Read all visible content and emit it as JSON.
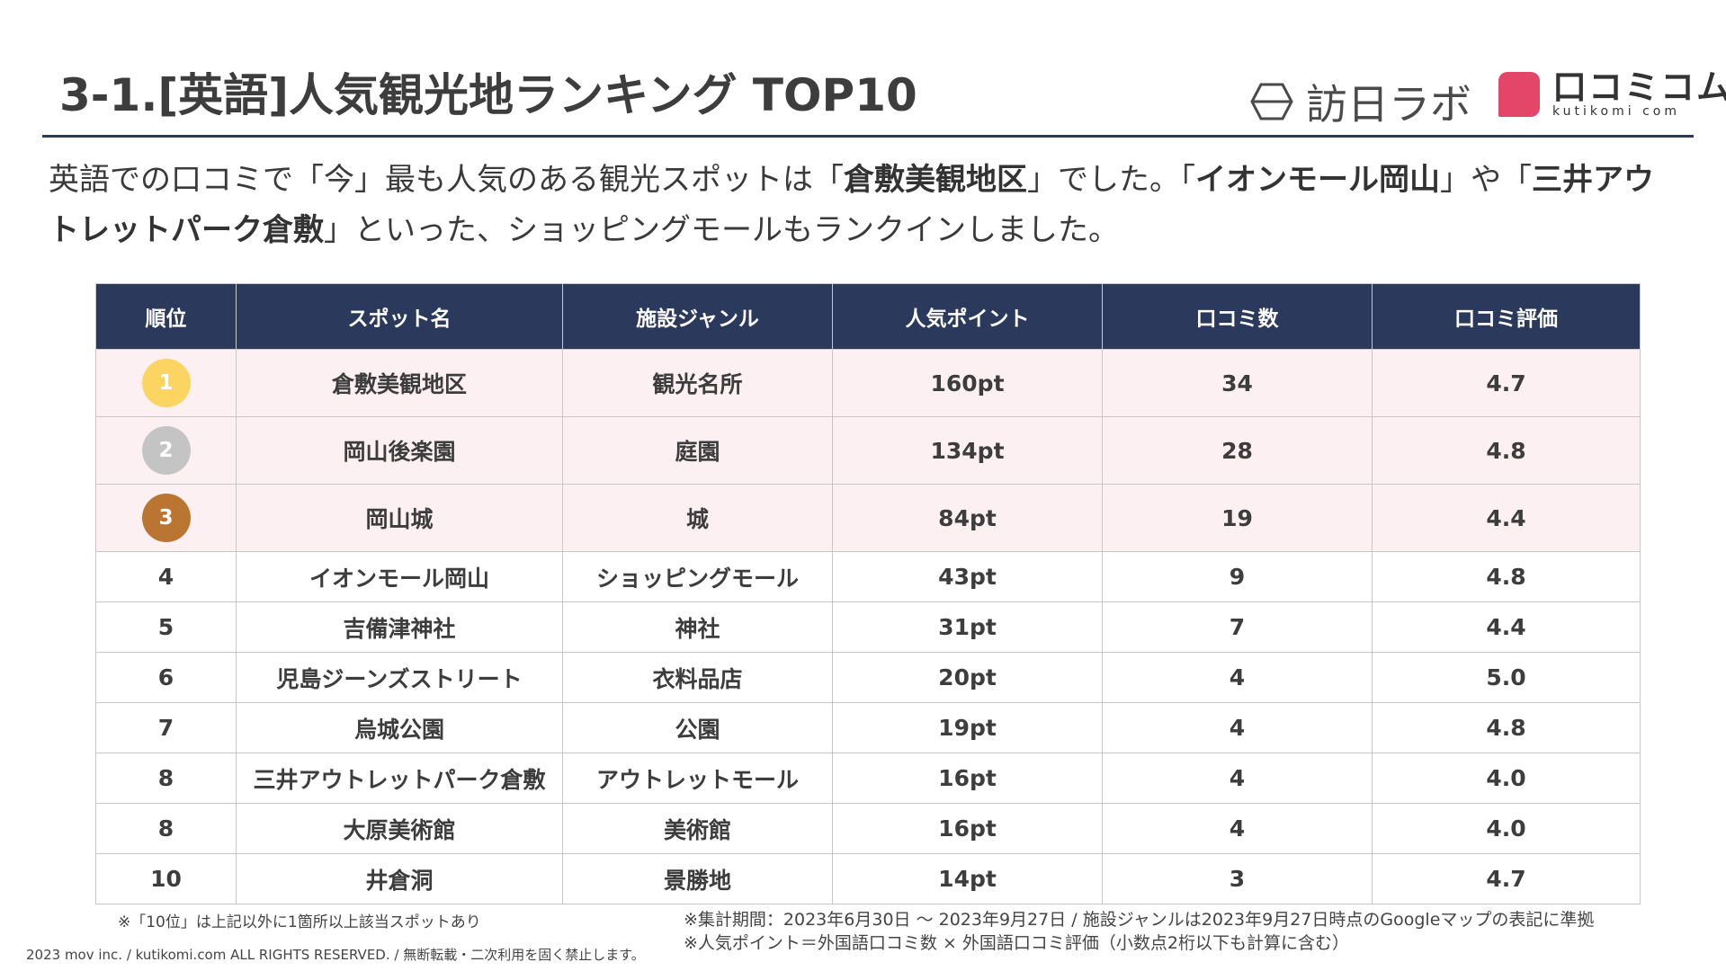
{
  "header": {
    "title": "3-1.[英語]人気観光地ランキング TOP10",
    "logo_houjin": "訪日ラボ",
    "logo_kuchikomi_main": "口コミコム",
    "logo_kuchikomi_sub": "kutikomi com"
  },
  "lead": {
    "p1": "英語での口コミで「今」最も人気のある観光スポットは「",
    "b1": "倉敷美観地区",
    "p2": "」でした。「",
    "b2": "イオンモール岡山",
    "p3": "」や「",
    "b3": "三井アウトレットパーク倉敷",
    "p4": "」といった、ショッピングモールもランクインしました。"
  },
  "table": {
    "headers": [
      "順位",
      "スポット名",
      "施設ジャンル",
      "人気ポイント",
      "口コミ数",
      "口コミ評価"
    ],
    "rows": [
      {
        "rank": "1",
        "name": "倉敷美観地区",
        "genre": "観光名所",
        "points": "160pt",
        "count": "34",
        "rating": "4.7"
      },
      {
        "rank": "2",
        "name": "岡山後楽園",
        "genre": "庭園",
        "points": "134pt",
        "count": "28",
        "rating": "4.8"
      },
      {
        "rank": "3",
        "name": "岡山城",
        "genre": "城",
        "points": "84pt",
        "count": "19",
        "rating": "4.4"
      },
      {
        "rank": "4",
        "name": "イオンモール岡山",
        "genre": "ショッピングモール",
        "points": "43pt",
        "count": "9",
        "rating": "4.8"
      },
      {
        "rank": "5",
        "name": "吉備津神社",
        "genre": "神社",
        "points": "31pt",
        "count": "7",
        "rating": "4.4"
      },
      {
        "rank": "6",
        "name": "児島ジーンズストリート",
        "genre": "衣料品店",
        "points": "20pt",
        "count": "4",
        "rating": "5.0"
      },
      {
        "rank": "7",
        "name": "烏城公園",
        "genre": "公園",
        "points": "19pt",
        "count": "4",
        "rating": "4.8"
      },
      {
        "rank": "8",
        "name": "三井アウトレットパーク倉敷",
        "genre": "アウトレットモール",
        "points": "16pt",
        "count": "4",
        "rating": "4.0"
      },
      {
        "rank": "8",
        "name": "大原美術館",
        "genre": "美術館",
        "points": "16pt",
        "count": "4",
        "rating": "4.0"
      },
      {
        "rank": "10",
        "name": "井倉洞",
        "genre": "景勝地",
        "points": "14pt",
        "count": "3",
        "rating": "4.7"
      }
    ]
  },
  "medals": {
    "gold": "#fcd462",
    "silver": "#c4c4c4",
    "bronze": "#b97531"
  },
  "colors": {
    "header_bg": "#2b3a5c",
    "top3_bg": "#fdf0f3",
    "brand_pink": "#e4466a"
  },
  "notes": {
    "left": "※「10位」は上記以外に1箇所以上該当スポットあり",
    "right1": "※集計期間：2023年6月30日 〜 2023年9月27日 / 施設ジャンルは2023年9月27日時点のGoogleマップの表記に準拠",
    "right2": "※人気ポイント＝外国語口コミ数 × 外国語口コミ評価（小数点2桁以下も計算に含む）"
  },
  "footer": {
    "copyright": "2023 mov inc. / kutikomi.com ALL RIGHTS RESERVED. / 無断転載・二次利用を固く禁止します。"
  }
}
